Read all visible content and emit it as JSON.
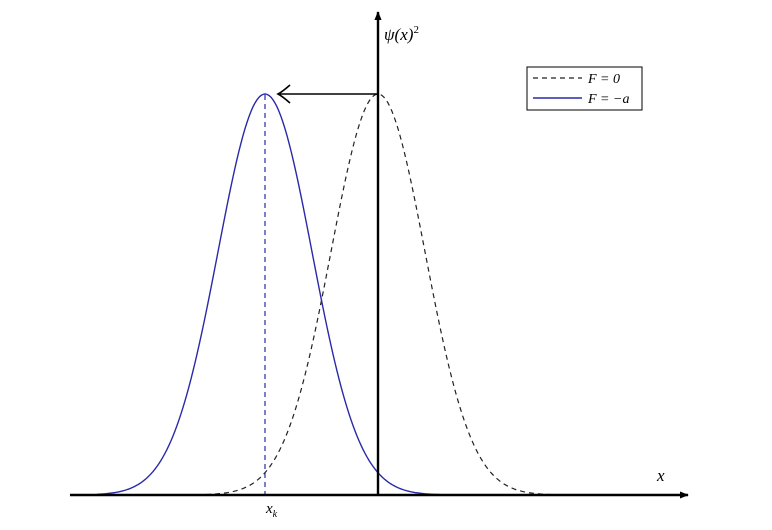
{
  "figure": {
    "y_axis_label": {
      "symbol": "ψ(x)",
      "superscript": "2"
    },
    "x_axis_label": "x",
    "shift_label": {
      "symbol": "x",
      "subscript": "k"
    },
    "legend": [
      "F = 0",
      "F = −a"
    ]
  }
}
